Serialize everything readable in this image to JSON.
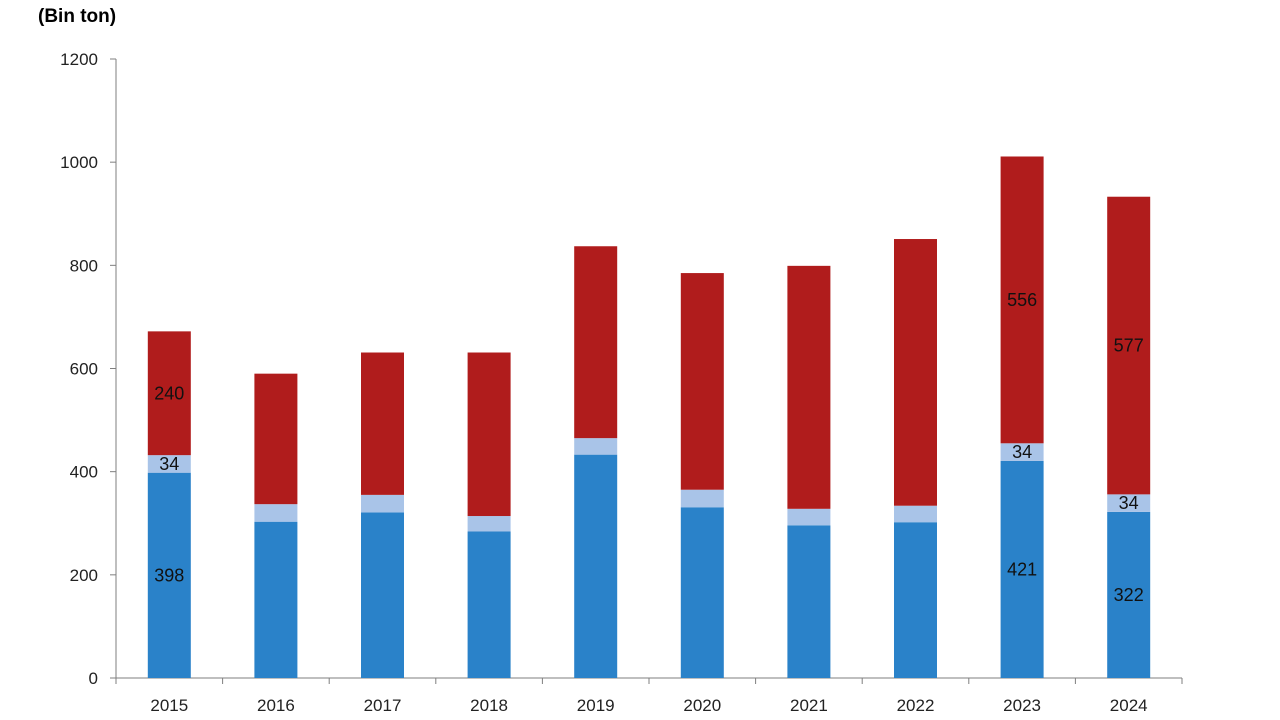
{
  "chart_data": {
    "type": "bar",
    "stacked": true,
    "unit_label": "(Bin ton)",
    "categories": [
      "2015",
      "2016",
      "2017",
      "2018",
      "2019",
      "2020",
      "2021",
      "2022",
      "2023",
      "2024"
    ],
    "series": [
      {
        "color": "#2a82c9",
        "values": [
          398,
          303,
          321,
          284,
          433,
          331,
          296,
          302,
          421,
          322
        ],
        "labels": [
          "398",
          "",
          "",
          "",
          "",
          "",
          "",
          "",
          "421",
          "322"
        ]
      },
      {
        "color": "#a9c4e8",
        "values": [
          34,
          34,
          34,
          30,
          32,
          34,
          32,
          32,
          34,
          34
        ],
        "labels": [
          "34",
          "",
          "",
          "",
          "",
          "",
          "",
          "",
          "34",
          "34"
        ]
      },
      {
        "color": "#b01c1c",
        "values": [
          240,
          253,
          276,
          317,
          372,
          420,
          471,
          517,
          556,
          577
        ],
        "labels": [
          "240",
          "",
          "",
          "",
          "",
          "",
          "",
          "",
          "556",
          "577"
        ]
      }
    ],
    "y_ticks": [
      "0",
      "200",
      "400",
      "600",
      "800",
      "1000",
      "1200"
    ],
    "ylim": [
      0,
      1200
    ],
    "grid": false,
    "legend": "none"
  }
}
